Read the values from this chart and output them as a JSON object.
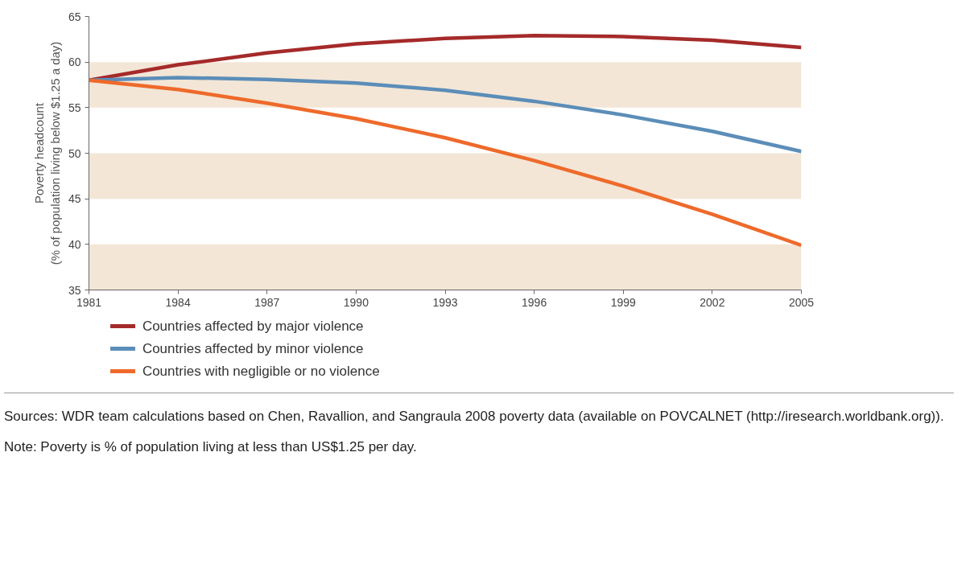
{
  "chart_data": {
    "type": "line",
    "ylabel": "Poverty headcount\n(% of population living below $1.25 a day)",
    "x": [
      1981,
      1984,
      1987,
      1990,
      1993,
      1996,
      1999,
      2002,
      2005
    ],
    "series": [
      {
        "name": "Countries affected by major violence",
        "color": "#a52a2a",
        "values": [
          58,
          59.7,
          61,
          62,
          62.6,
          62.9,
          62.8,
          62.4,
          61.6
        ]
      },
      {
        "name": "Countries affected by minor violence",
        "color": "#5b8db8",
        "values": [
          58,
          58.3,
          58.1,
          57.7,
          56.9,
          55.7,
          54.2,
          52.4,
          50.2
        ]
      },
      {
        "name": "Countries with negligible or no violence",
        "color": "#ee6a2b",
        "values": [
          58,
          57,
          55.5,
          53.8,
          51.7,
          49.2,
          46.4,
          43.3,
          39.9
        ]
      }
    ],
    "xlim": [
      1981,
      2005
    ],
    "xticks": [
      1981,
      1984,
      1987,
      1990,
      1993,
      1996,
      1999,
      2002,
      2005
    ],
    "ylim": [
      35,
      65
    ],
    "yticks": [
      35,
      40,
      45,
      50,
      55,
      60,
      65
    ],
    "bands": [
      {
        "axis": "y",
        "from": 35,
        "to": 40,
        "color": "#f3e6d6"
      },
      {
        "axis": "y",
        "from": 45,
        "to": 50,
        "color": "#f3e6d6"
      },
      {
        "axis": "y",
        "from": 55,
        "to": 60,
        "color": "#f3e6d6"
      }
    ],
    "grid": false,
    "legend": "bottom",
    "line_style": "solid",
    "marker": "none",
    "annotations": [
      "Sources: WDR team calculations based on Chen, Ravallion, and Sangraula 2008 poverty data (available on POVCALNET (http://iresearch.worldbank.org)).",
      "Note: Poverty is % of population living at less than US$1.25 per day."
    ]
  }
}
